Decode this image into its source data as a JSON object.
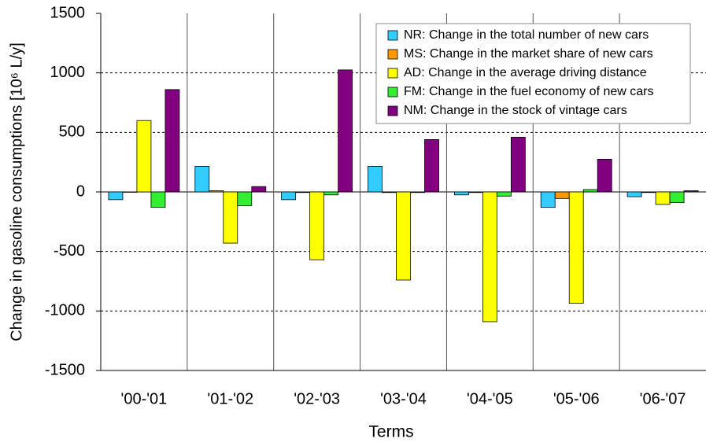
{
  "chart_data": {
    "type": "bar",
    "x_label": "Terms",
    "y_label": "Change in gasoline consumptions [10⁶ L/y]",
    "categories": [
      "'00-'01",
      "'01-'02",
      "'02-'03",
      "'03-'04",
      "'04-'05",
      "'05-'06",
      "'06-'07"
    ],
    "series": [
      {
        "name": "NR: Change in the total number of new cars",
        "color": "#33ccff",
        "values": [
          -65,
          215,
          -65,
          215,
          -25,
          -130,
          -40
        ]
      },
      {
        "name": "MS: Change in the market share of new cars",
        "color": "#ff9900",
        "values": [
          -3,
          10,
          -5,
          -5,
          -5,
          -55,
          -5
        ]
      },
      {
        "name": "AD: Change in the average driving distance",
        "color": "#ffff00",
        "values": [
          600,
          -430,
          -570,
          -740,
          -1090,
          -935,
          -105
        ]
      },
      {
        "name": "FM: Change in the fuel economy of new cars",
        "color": "#33ee33",
        "values": [
          -130,
          -115,
          -25,
          -5,
          -35,
          20,
          -90
        ]
      },
      {
        "name": "NM: Change in the stock of vintage cars",
        "color": "#800080",
        "values": [
          860,
          45,
          1025,
          440,
          460,
          275,
          10
        ]
      }
    ],
    "ylim": [
      -1500,
      1500
    ],
    "yticks": [
      -1500,
      -1000,
      -500,
      0,
      500,
      1000,
      1500
    ],
    "grid": true
  }
}
